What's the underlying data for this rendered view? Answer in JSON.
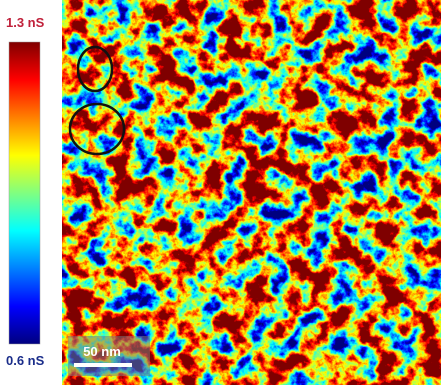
{
  "colorbar": {
    "max_label": "1.3 nS",
    "min_label": "0.6 nS"
  },
  "scale_bar": {
    "label": "50 nm"
  }
}
